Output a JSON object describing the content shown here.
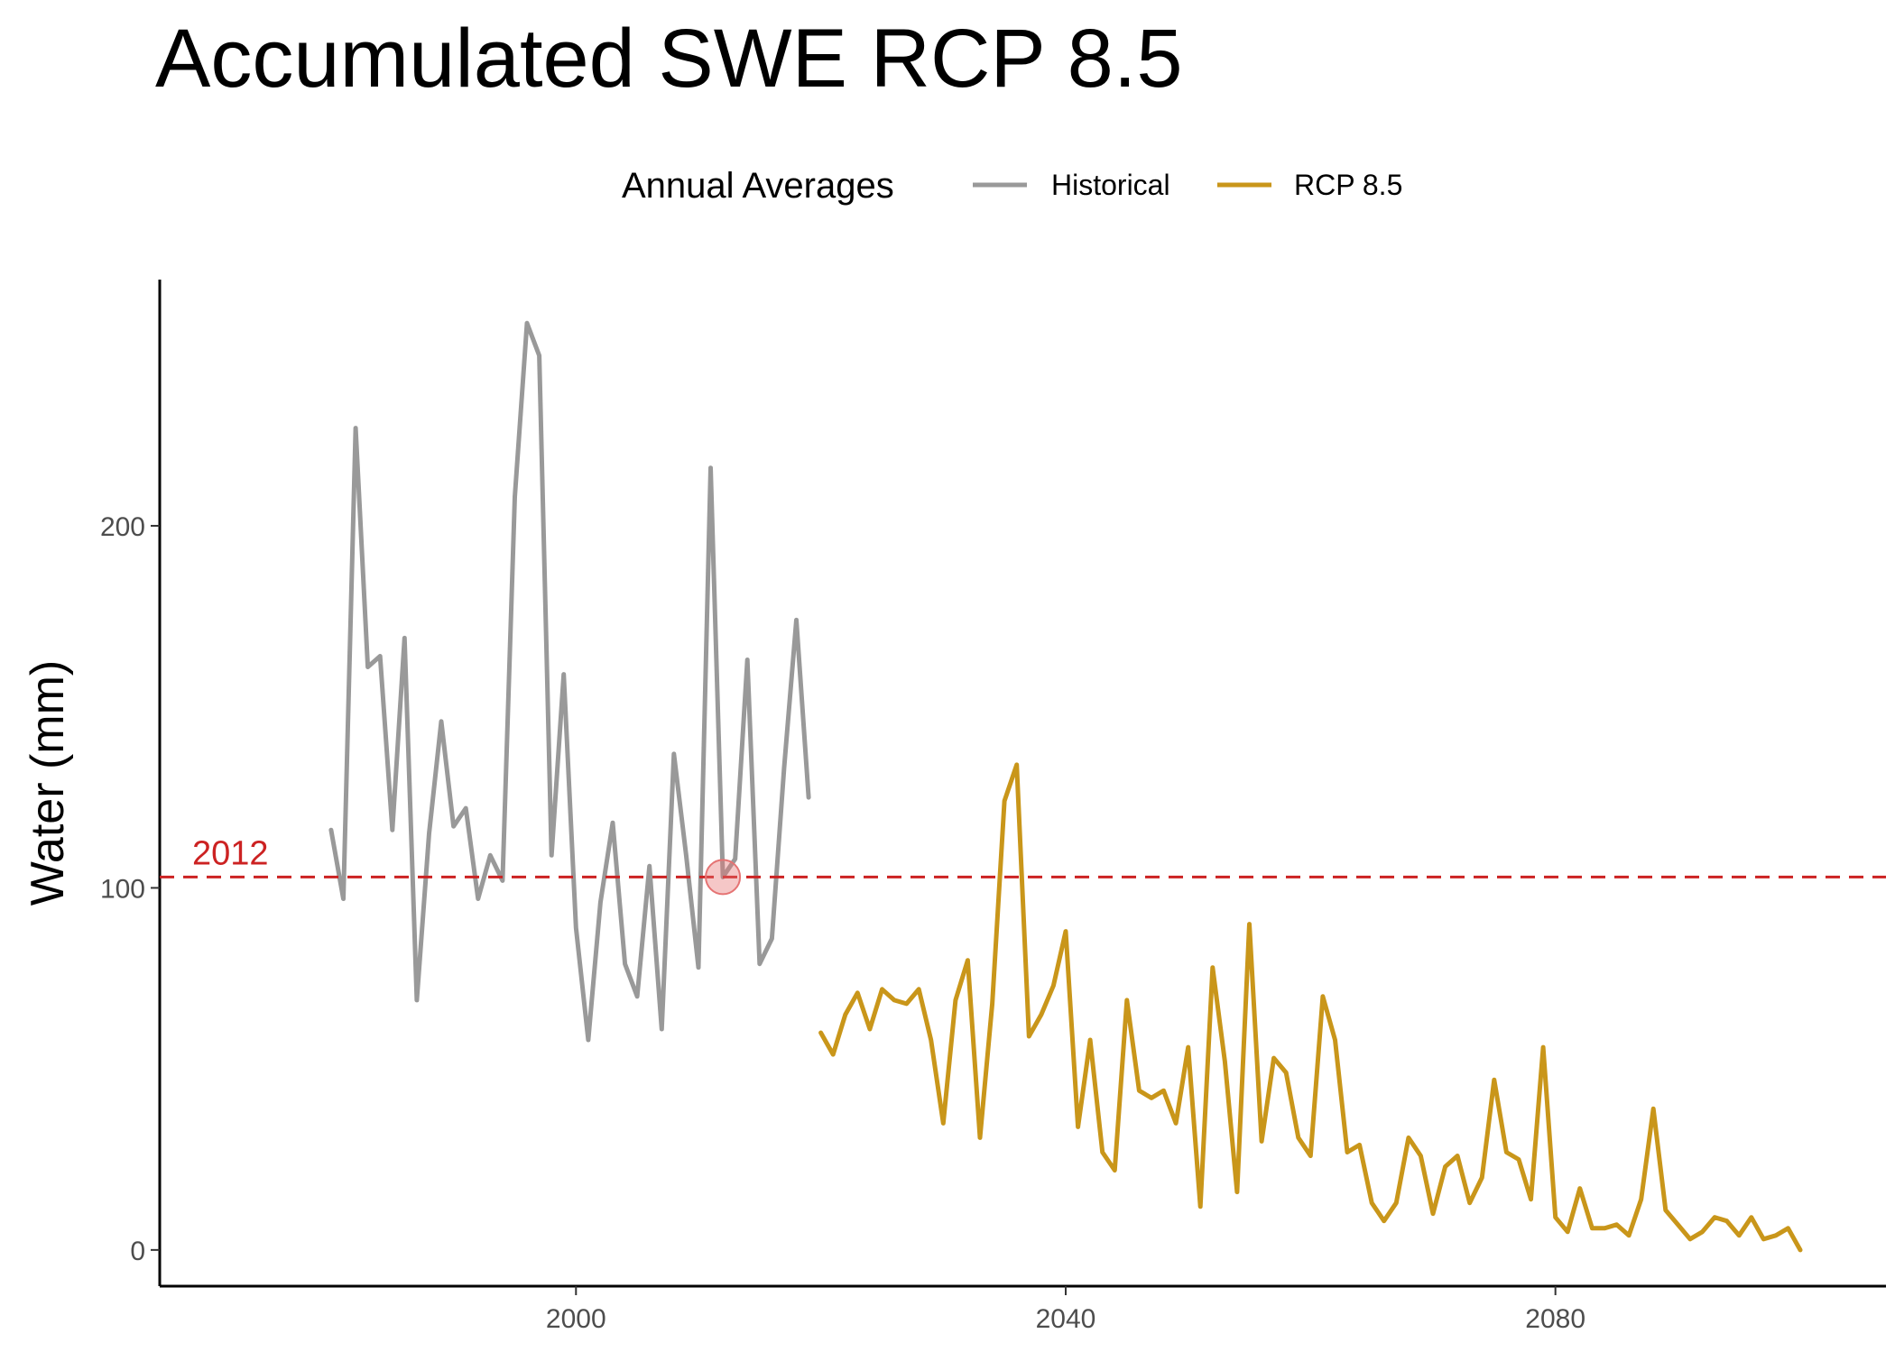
{
  "chart_data": {
    "type": "line",
    "title": "Accumulated SWE RCP 8.5",
    "xlabel": "",
    "ylabel": "Water (mm)",
    "xlim": [
      1966,
      2107
    ],
    "ylim": [
      -10,
      268
    ],
    "x_ticks": [
      2000,
      2040,
      2080
    ],
    "y_ticks": [
      0,
      100,
      200
    ],
    "grid": false,
    "legend": {
      "title": "Annual Averages",
      "position": "top"
    },
    "series": [
      {
        "name": "Historical",
        "color": "#999999",
        "x": [
          1980,
          1981,
          1982,
          1983,
          1984,
          1985,
          1986,
          1987,
          1988,
          1989,
          1990,
          1991,
          1992,
          1993,
          1994,
          1995,
          1996,
          1997,
          1998,
          1999,
          2000,
          2001,
          2002,
          2003,
          2004,
          2005,
          2006,
          2007,
          2008,
          2009,
          2010,
          2011,
          2012,
          2013,
          2014,
          2015,
          2016,
          2017,
          2018,
          2019
        ],
        "y": [
          116,
          97,
          227,
          161,
          164,
          116,
          169,
          69,
          115,
          146,
          117,
          122,
          97,
          109,
          102,
          208,
          256,
          247,
          109,
          159,
          89,
          58,
          96,
          118,
          79,
          70,
          106,
          61,
          137,
          109,
          78,
          216,
          103,
          108,
          163,
          79,
          86,
          133,
          174,
          125
        ]
      },
      {
        "name": "RCP 8.5",
        "color": "#C9961A",
        "x": [
          2020,
          2021,
          2022,
          2023,
          2024,
          2025,
          2026,
          2027,
          2028,
          2029,
          2030,
          2031,
          2032,
          2033,
          2034,
          2035,
          2036,
          2037,
          2038,
          2039,
          2040,
          2041,
          2042,
          2043,
          2044,
          2045,
          2046,
          2047,
          2048,
          2049,
          2050,
          2051,
          2052,
          2053,
          2054,
          2055,
          2056,
          2057,
          2058,
          2059,
          2060,
          2061,
          2062,
          2063,
          2064,
          2065,
          2066,
          2067,
          2068,
          2069,
          2070,
          2071,
          2072,
          2073,
          2074,
          2075,
          2076,
          2077,
          2078,
          2079,
          2080,
          2081,
          2082,
          2083,
          2084,
          2085,
          2086,
          2087,
          2088,
          2089,
          2090,
          2091,
          2092,
          2093,
          2094,
          2095,
          2096,
          2097,
          2098,
          2099,
          2100
        ],
        "y": [
          60,
          54,
          65,
          71,
          61,
          72,
          69,
          68,
          72,
          58,
          35,
          69,
          80,
          31,
          68,
          124,
          134,
          59,
          65,
          73,
          88,
          34,
          58,
          27,
          22,
          69,
          44,
          42,
          44,
          35,
          56,
          12,
          78,
          52,
          16,
          90,
          30,
          53,
          49,
          31,
          26,
          70,
          58,
          27,
          29,
          13,
          8,
          13,
          31,
          26,
          10,
          23,
          26,
          13,
          20,
          47,
          27,
          25,
          14,
          56,
          9,
          5,
          17,
          6,
          6,
          7,
          4,
          14,
          39,
          11,
          7,
          3,
          5,
          9,
          8,
          4,
          9,
          3,
          4,
          6,
          0
        ]
      }
    ],
    "reference_line": {
      "y": 103,
      "label": "2012",
      "color": "#CC2222",
      "style": "dashed"
    },
    "highlight_point": {
      "x": 2012,
      "y": 103,
      "color": "#E57373"
    }
  }
}
